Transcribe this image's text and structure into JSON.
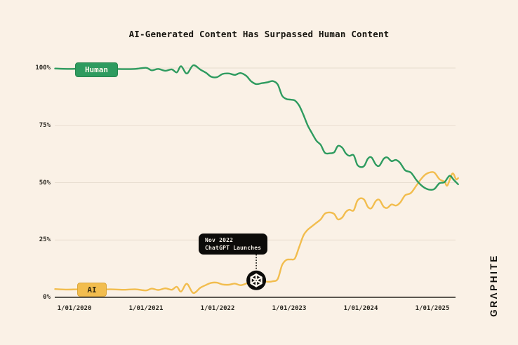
{
  "palette": {
    "background": "#faf1e6",
    "grid": "#e7ddcf",
    "axis": "#44413a",
    "green": "#2e9b5f",
    "yellow": "#f2bd4e",
    "tooltip_bg": "#0c0b09",
    "tooltip_fg": "#f7f2e9",
    "marker_bg": "#0c0b09",
    "marker_fg": "#fdf7ee"
  },
  "brand": {
    "wordmark": "GRΛPHITE"
  },
  "chart_data": {
    "type": "line",
    "title": "AI-Generated Content Has Surpassed Human Content",
    "xlabel": "",
    "ylabel": "",
    "x_unit": "years since 1/01/2020",
    "ylim": [
      0,
      100
    ],
    "grid": "horizontal-only",
    "x_axis": {
      "ticks": [
        {
          "t": 0,
          "label": "1/01/2020"
        },
        {
          "t": 1,
          "label": "1/01/2021"
        },
        {
          "t": 2,
          "label": "1/01/2022"
        },
        {
          "t": 3,
          "label": "1/01/2023"
        },
        {
          "t": 4,
          "label": "1/01/2024"
        },
        {
          "t": 5,
          "label": "1/01/2025"
        }
      ]
    },
    "y_axis": {
      "ticks": [
        {
          "v": 100,
          "label": "100%"
        },
        {
          "v": 75,
          "label": "75%"
        },
        {
          "v": 50,
          "label": "50%"
        },
        {
          "v": 25,
          "label": "25%"
        },
        {
          "v": 0,
          "label": "0%"
        }
      ]
    },
    "series": [
      {
        "name": "Human",
        "color": "#2e9b5f",
        "points": [
          [
            -0.27,
            99.8
          ],
          [
            -0.1,
            99.6
          ],
          [
            0.1,
            99.7
          ],
          [
            0.3,
            99.5
          ],
          [
            0.5,
            99.6
          ],
          [
            0.7,
            99.5
          ],
          [
            0.85,
            99.6
          ],
          [
            1.0,
            100.1
          ],
          [
            1.08,
            99.0
          ],
          [
            1.17,
            99.6
          ],
          [
            1.27,
            98.8
          ],
          [
            1.36,
            99.4
          ],
          [
            1.43,
            98.1
          ],
          [
            1.49,
            100.8
          ],
          [
            1.57,
            97.6
          ],
          [
            1.66,
            101.2
          ],
          [
            1.76,
            99.3
          ],
          [
            1.84,
            97.9
          ],
          [
            1.91,
            96.2
          ],
          [
            1.99,
            96.0
          ],
          [
            2.07,
            97.4
          ],
          [
            2.16,
            97.6
          ],
          [
            2.24,
            97.0
          ],
          [
            2.32,
            97.8
          ],
          [
            2.4,
            96.6
          ],
          [
            2.47,
            94.2
          ],
          [
            2.54,
            93.0
          ],
          [
            2.62,
            93.4
          ],
          [
            2.7,
            93.8
          ],
          [
            2.77,
            94.3
          ],
          [
            2.84,
            92.8
          ],
          [
            2.9,
            88.0
          ],
          [
            2.96,
            86.5
          ],
          [
            3.02,
            86.2
          ],
          [
            3.08,
            85.8
          ],
          [
            3.14,
            83.6
          ],
          [
            3.2,
            79.5
          ],
          [
            3.26,
            74.9
          ],
          [
            3.32,
            71.5
          ],
          [
            3.38,
            68.3
          ],
          [
            3.44,
            66.5
          ],
          [
            3.5,
            63.0
          ],
          [
            3.57,
            62.8
          ],
          [
            3.63,
            63.3
          ],
          [
            3.68,
            66.0
          ],
          [
            3.74,
            65.3
          ],
          [
            3.79,
            62.8
          ],
          [
            3.84,
            61.7
          ],
          [
            3.9,
            62.0
          ],
          [
            3.95,
            57.9
          ],
          [
            4.0,
            56.8
          ],
          [
            4.05,
            57.4
          ],
          [
            4.1,
            60.5
          ],
          [
            4.15,
            61.0
          ],
          [
            4.21,
            57.9
          ],
          [
            4.26,
            57.4
          ],
          [
            4.32,
            60.4
          ],
          [
            4.37,
            61.0
          ],
          [
            4.43,
            59.4
          ],
          [
            4.49,
            59.9
          ],
          [
            4.55,
            58.6
          ],
          [
            4.62,
            55.4
          ],
          [
            4.7,
            54.4
          ],
          [
            4.78,
            51.0
          ],
          [
            4.84,
            49.0
          ],
          [
            4.9,
            47.6
          ],
          [
            4.97,
            46.9
          ],
          [
            5.03,
            47.3
          ],
          [
            5.1,
            49.8
          ],
          [
            5.17,
            50.2
          ],
          [
            5.24,
            53.0
          ],
          [
            5.3,
            51.2
          ],
          [
            5.36,
            49.3
          ]
        ]
      },
      {
        "name": "AI",
        "color": "#f2bd4e",
        "points": [
          [
            -0.27,
            3.6
          ],
          [
            -0.1,
            3.4
          ],
          [
            0.1,
            3.5
          ],
          [
            0.3,
            3.3
          ],
          [
            0.5,
            3.5
          ],
          [
            0.7,
            3.3
          ],
          [
            0.85,
            3.5
          ],
          [
            1.0,
            3.0
          ],
          [
            1.08,
            3.8
          ],
          [
            1.17,
            3.2
          ],
          [
            1.27,
            3.9
          ],
          [
            1.36,
            3.3
          ],
          [
            1.43,
            4.6
          ],
          [
            1.49,
            2.5
          ],
          [
            1.57,
            5.9
          ],
          [
            1.66,
            1.9
          ],
          [
            1.76,
            4.2
          ],
          [
            1.84,
            5.4
          ],
          [
            1.91,
            6.3
          ],
          [
            1.99,
            6.4
          ],
          [
            2.07,
            5.6
          ],
          [
            2.16,
            5.5
          ],
          [
            2.24,
            6.0
          ],
          [
            2.32,
            5.3
          ],
          [
            2.4,
            6.0
          ],
          [
            2.47,
            6.9
          ],
          [
            2.54,
            7.4
          ],
          [
            2.62,
            7.2
          ],
          [
            2.7,
            6.8
          ],
          [
            2.77,
            7.0
          ],
          [
            2.84,
            8.0
          ],
          [
            2.9,
            14.0
          ],
          [
            2.96,
            16.3
          ],
          [
            3.02,
            16.5
          ],
          [
            3.08,
            17.0
          ],
          [
            3.14,
            22.0
          ],
          [
            3.2,
            27.0
          ],
          [
            3.26,
            29.5
          ],
          [
            3.32,
            31.0
          ],
          [
            3.38,
            32.5
          ],
          [
            3.44,
            34.0
          ],
          [
            3.5,
            36.5
          ],
          [
            3.57,
            37.0
          ],
          [
            3.63,
            36.3
          ],
          [
            3.68,
            34.0
          ],
          [
            3.74,
            34.8
          ],
          [
            3.79,
            37.2
          ],
          [
            3.84,
            38.2
          ],
          [
            3.9,
            37.9
          ],
          [
            3.95,
            42.0
          ],
          [
            4.0,
            43.2
          ],
          [
            4.05,
            42.5
          ],
          [
            4.1,
            39.4
          ],
          [
            4.15,
            38.9
          ],
          [
            4.21,
            42.0
          ],
          [
            4.26,
            42.5
          ],
          [
            4.32,
            39.5
          ],
          [
            4.37,
            39.0
          ],
          [
            4.43,
            40.5
          ],
          [
            4.49,
            40.0
          ],
          [
            4.55,
            41.3
          ],
          [
            4.62,
            44.5
          ],
          [
            4.7,
            45.5
          ],
          [
            4.78,
            48.9
          ],
          [
            4.84,
            51.5
          ],
          [
            4.9,
            53.5
          ],
          [
            4.97,
            54.5
          ],
          [
            5.03,
            54.3
          ],
          [
            5.1,
            51.5
          ],
          [
            5.17,
            50.4
          ],
          [
            5.21,
            48.8
          ],
          [
            5.28,
            54.0
          ],
          [
            5.33,
            51.5
          ],
          [
            5.36,
            52.0
          ]
        ]
      }
    ],
    "annotation": {
      "lines": [
        "Nov 2022",
        "ChatGPT Launches"
      ],
      "icon": "openai-logo",
      "t": 2.54,
      "value": 7.4,
      "series": "AI"
    },
    "legend_position": "on-line-left"
  }
}
